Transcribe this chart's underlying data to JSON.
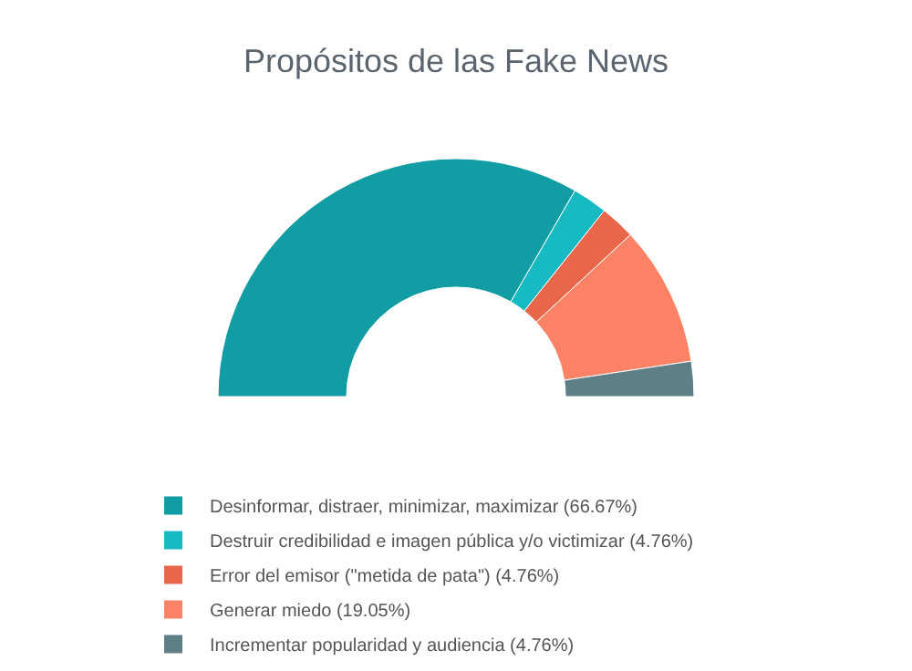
{
  "chart_data": {
    "type": "donut",
    "title": "Propósitos de las Fake News",
    "categories": [
      "Desinformar, distraer, minimizar, maximizar (66.67%)",
      "Destruir credibilidad e imagen pública y/o victimizar (4.76%)",
      "Error del emisor (\"metida de pata\") (4.76%)",
      "Generar miedo (19.05%)",
      "Incrementar popularidad y audiencia (4.76%)"
    ],
    "values": [
      66.67,
      4.76,
      4.76,
      19.05,
      4.76
    ],
    "colors": [
      "#129ca3",
      "#17b9c3",
      "#e8674b",
      "#fb8264",
      "#5f7f86"
    ],
    "legend": "bottom"
  }
}
